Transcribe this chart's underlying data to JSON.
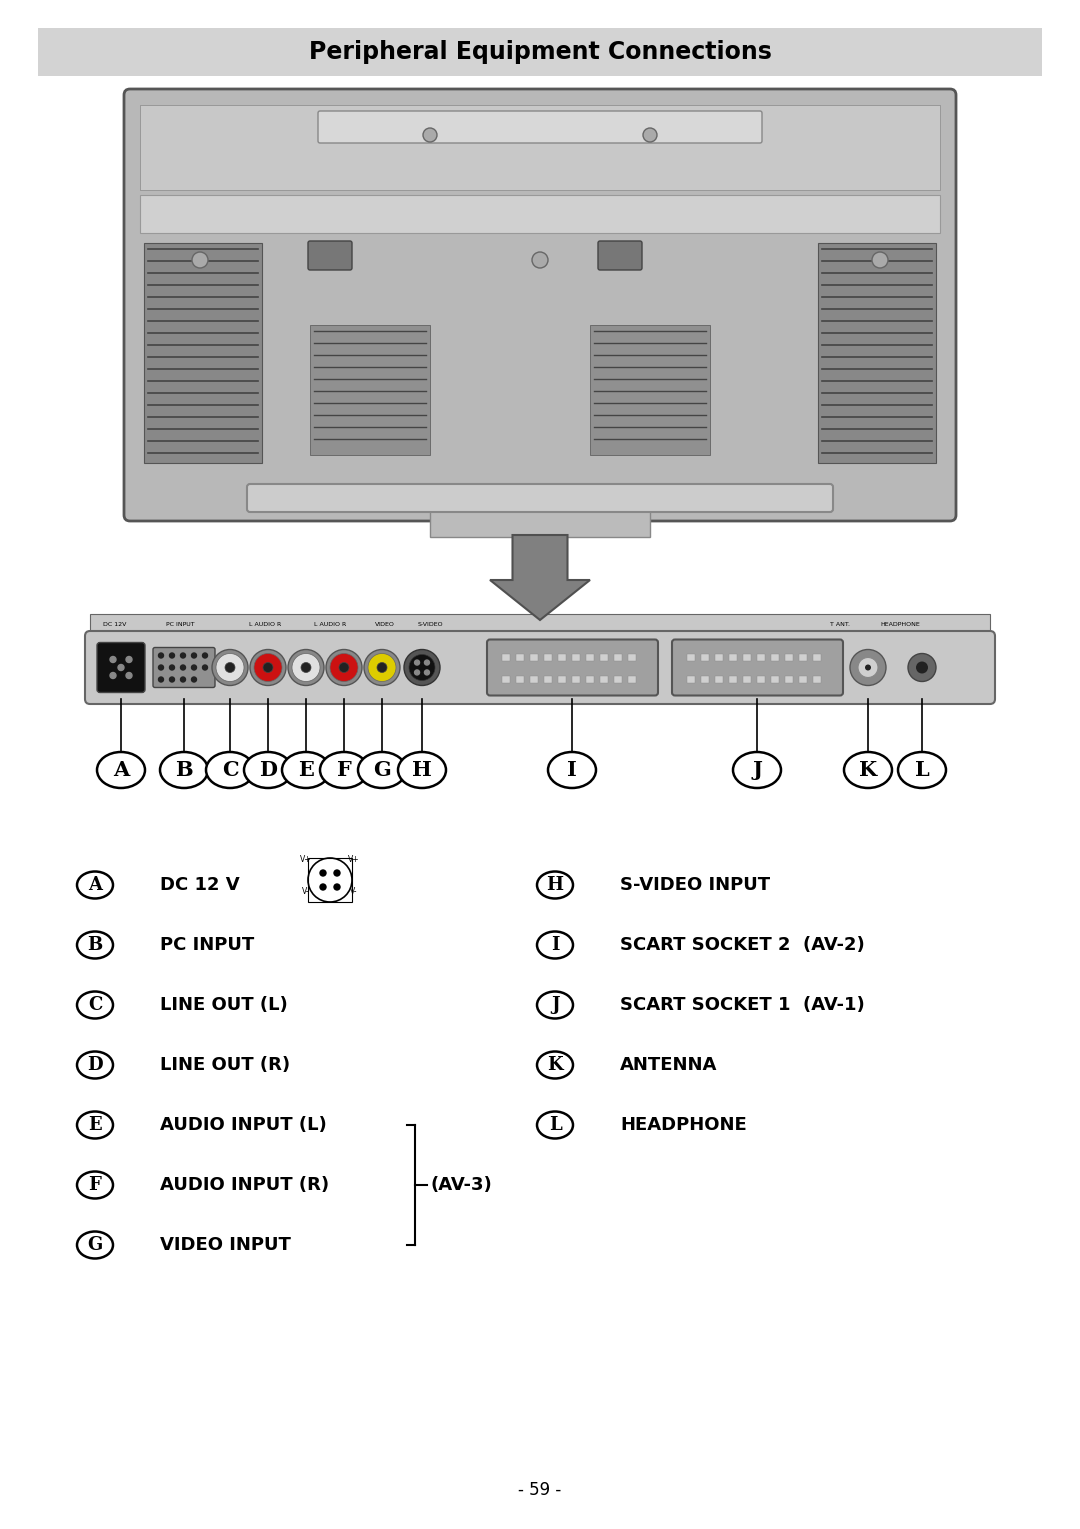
{
  "title": "Peripheral Equipment Connections",
  "title_bg": "#d3d3d3",
  "page_bg": "#ffffff",
  "page_number": "- 59 -",
  "left_labels": [
    {
      "letter": "A",
      "text": "DC 12 V",
      "has_connector_icon": true
    },
    {
      "letter": "B",
      "text": "PC INPUT",
      "has_connector_icon": false
    },
    {
      "letter": "C",
      "text": "LINE OUT (L)",
      "has_connector_icon": false
    },
    {
      "letter": "D",
      "text": "LINE OUT (R)",
      "has_connector_icon": false
    },
    {
      "letter": "E",
      "text": "AUDIO INPUT (L)",
      "has_connector_icon": false
    },
    {
      "letter": "F",
      "text": "AUDIO INPUT (R)",
      "has_connector_icon": false
    },
    {
      "letter": "G",
      "text": "VIDEO INPUT",
      "has_connector_icon": false
    }
  ],
  "right_labels": [
    {
      "letter": "H",
      "text": "S-VIDEO INPUT",
      "has_connector_icon": false
    },
    {
      "letter": "I",
      "text": "SCART SOCKET 2  (AV-2)",
      "has_connector_icon": false
    },
    {
      "letter": "J",
      "text": "SCART SOCKET 1  (AV-1)",
      "has_connector_icon": false
    },
    {
      "letter": "K",
      "text": "ANTENNA",
      "has_connector_icon": false
    },
    {
      "letter": "L",
      "text": "HEADPHONE",
      "has_connector_icon": false
    }
  ],
  "bracket_label": "(AV-3)",
  "label_font_size": 13,
  "title_font_size": 17
}
